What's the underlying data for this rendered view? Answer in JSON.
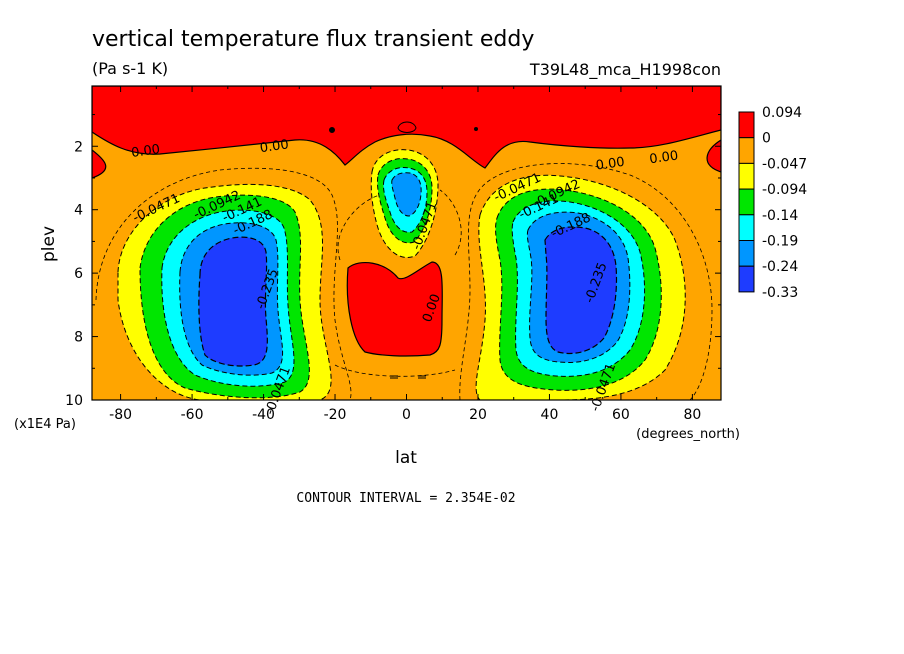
{
  "chart_data": {
    "type": "heatmap",
    "title": "vertical temperature flux transient eddy",
    "units": "(Pa s-1 K)",
    "run_label": "T39L48_mca_H1998con",
    "xlabel": "lat",
    "x_units": "(degrees_north)",
    "ylabel": "plev",
    "y_units": "(x1E4 Pa)",
    "xlim": [
      -88,
      88
    ],
    "ylim": [
      10,
      0.1
    ],
    "x_ticks": [
      -80,
      -60,
      -40,
      -20,
      0,
      20,
      40,
      60,
      80
    ],
    "y_ticks": [
      2,
      4,
      6,
      8,
      10
    ],
    "contour_interval": "CONTOUR INTERVAL = 2.354E-02",
    "colorbar": {
      "labels": [
        "0.094",
        "0",
        "-0.047",
        "-0.094",
        "-0.14",
        "-0.19",
        "-0.24",
        "-0.33"
      ],
      "colors": [
        "#ff0000",
        "#ffa500",
        "#ffff00",
        "#00e600",
        "#00ffff",
        "#0096ff",
        "#1e3cff"
      ]
    },
    "contour_labels": [
      {
        "text": "0.00",
        "x": -73,
        "y": 2.15
      },
      {
        "text": "0.00",
        "x": -37,
        "y": 2.0
      },
      {
        "text": "0.00",
        "x": 57,
        "y": 2.55
      },
      {
        "text": "0.00",
        "x": 72,
        "y": 2.35
      },
      {
        "text": "-0.0471",
        "x": -70,
        "y": 3.95
      },
      {
        "text": "-0.0942",
        "x": -53,
        "y": 3.85
      },
      {
        "text": "-0.141",
        "x": -46,
        "y": 4.0
      },
      {
        "text": "-0.188",
        "x": -43,
        "y": 4.4
      },
      {
        "text": "-0.235",
        "x": -39,
        "y": 6.5
      },
      {
        "text": "-0.0471",
        "x": 5,
        "y": 4.5
      },
      {
        "text": "0.00",
        "x": 7,
        "y": 7.1
      },
      {
        "text": "-0.0471",
        "x": 31,
        "y": 3.3
      },
      {
        "text": "-0.0942",
        "x": 42,
        "y": 3.5
      },
      {
        "text": "-0.141",
        "x": 37,
        "y": 3.9
      },
      {
        "text": "-0.188",
        "x": 46,
        "y": 4.5
      },
      {
        "text": "-0.235",
        "x": 53,
        "y": 6.3
      },
      {
        "text": "-0.0471",
        "x": -36,
        "y": 9.7
      },
      {
        "text": "-0.0471",
        "x": 55,
        "y": 9.6
      }
    ]
  }
}
